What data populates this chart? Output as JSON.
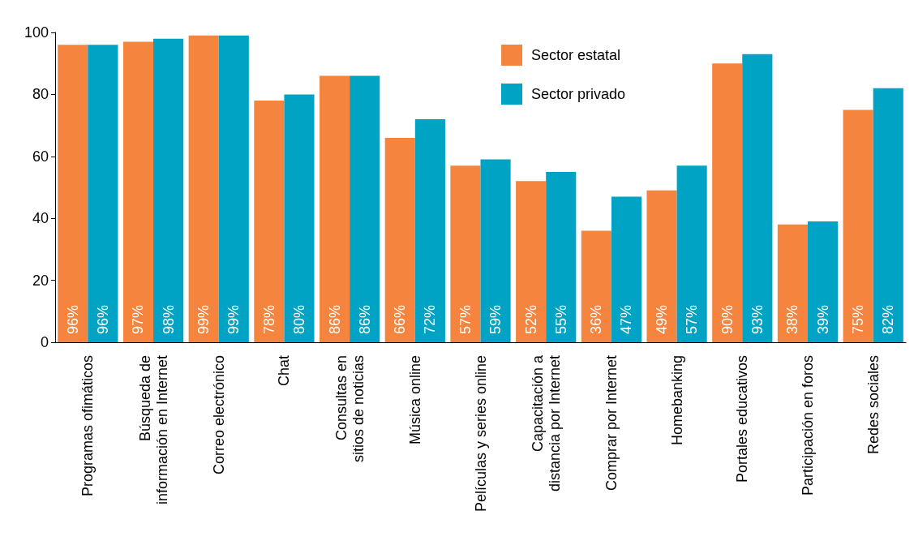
{
  "chart_data": {
    "type": "bar",
    "categories": [
      "Programas ofimáticos",
      "Búsqueda de\ninformación en Internet",
      "Correo electrónico",
      "Chat",
      "Consultas en\nsitios de noticias",
      "Música online",
      "Películas y series online",
      "Capacitación a\ndistancia por Internet",
      "Comprar por Internet",
      "Homebanking",
      "Portales educativos",
      "Participación en foros",
      "Redes sociales"
    ],
    "series": [
      {
        "name": "Sector estatal",
        "color": "#f5843f",
        "values": [
          96,
          97,
          99,
          78,
          86,
          66,
          57,
          52,
          36,
          49,
          90,
          38,
          75
        ],
        "value_labels": [
          "96%",
          "97%",
          "99%",
          "78%",
          "86%",
          "66%",
          "57%",
          "52%",
          "36%",
          "49%",
          "90%",
          "38%",
          "75%"
        ]
      },
      {
        "name": "Sector privado",
        "color": "#00a3c4",
        "values": [
          96,
          98,
          99,
          80,
          86,
          72,
          59,
          55,
          47,
          57,
          93,
          39,
          82
        ],
        "value_labels": [
          "96%",
          "98%",
          "99%",
          "80%",
          "86%",
          "72%",
          "59%",
          "55%",
          "47%",
          "57%",
          "93%",
          "39%",
          "82%"
        ]
      }
    ],
    "ylim": [
      0,
      100
    ],
    "yticks": [
      0,
      20,
      40,
      60,
      80,
      100
    ],
    "grid": false,
    "legend": "top right"
  }
}
